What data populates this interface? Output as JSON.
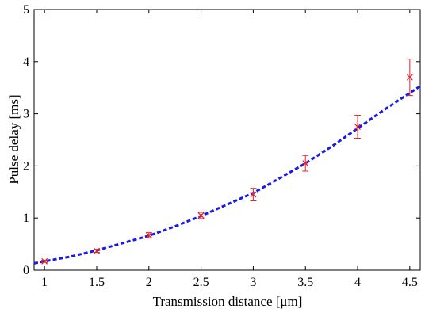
{
  "chart_data": {
    "type": "scatter",
    "xlabel": "Transmission distance [μm]",
    "ylabel": "Pulse delay [ms]",
    "xlim": [
      0.9,
      4.6
    ],
    "ylim": [
      0,
      5
    ],
    "xticks": [
      1,
      1.5,
      2,
      2.5,
      3,
      3.5,
      4,
      4.5
    ],
    "yticks": [
      0,
      1,
      2,
      3,
      4,
      5
    ],
    "xtick_labels": [
      "1",
      "1.5",
      "2",
      "2.5",
      "3",
      "3.5",
      "4",
      "4.5"
    ],
    "ytick_labels": [
      "0",
      "1",
      "2",
      "3",
      "4",
      "5"
    ],
    "grid": false,
    "series": [
      {
        "kind": "errorbar",
        "marker": "x",
        "color": "#e8202a",
        "x": [
          1,
          1.5,
          2,
          2.5,
          3,
          3.5,
          4,
          4.5
        ],
        "y": [
          0.17,
          0.37,
          0.67,
          1.05,
          1.45,
          2.05,
          2.75,
          3.7
        ],
        "err": [
          0.02,
          0.03,
          0.05,
          0.06,
          0.12,
          0.15,
          0.22,
          0.35
        ]
      },
      {
        "kind": "fit",
        "line_style": "dashed",
        "color": "#1a1ae6",
        "x": [
          0.9,
          1.0,
          1.25,
          1.5,
          1.75,
          2.0,
          2.25,
          2.5,
          2.75,
          3.0,
          3.25,
          3.5,
          3.75,
          4.0,
          4.25,
          4.6
        ],
        "y": [
          0.13,
          0.17,
          0.26,
          0.38,
          0.52,
          0.66,
          0.84,
          1.04,
          1.26,
          1.48,
          1.76,
          2.05,
          2.37,
          2.72,
          3.07,
          3.53
        ]
      }
    ]
  }
}
